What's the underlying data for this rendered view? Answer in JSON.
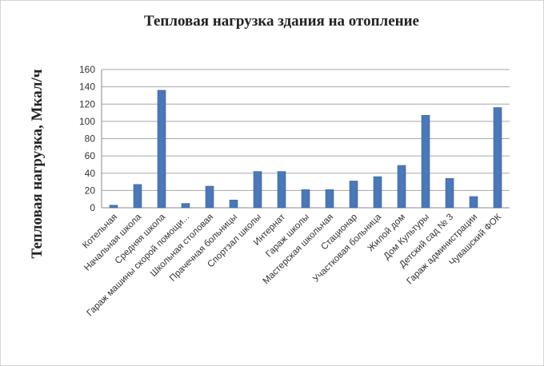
{
  "chart_data": {
    "type": "bar",
    "title": "Тепловая нагрузка здания на отопление",
    "ylabel": "Тепловая нагрузка, Мкал/ч",
    "xlabel": "",
    "ylim": [
      0,
      160
    ],
    "yticks": [
      0,
      20,
      40,
      60,
      80,
      100,
      120,
      140,
      160
    ],
    "grid": true,
    "legend": "none",
    "bar_color": "#4a78b8",
    "categories": [
      "Котельная",
      "Начальная школа",
      "Средняя школа",
      "Гараж машины скорой помощи...",
      "Школьная столовая",
      "Прачечная больницы",
      "Спортзал школы",
      "Интернат",
      "Гараж школы",
      "Мастерская школьная",
      "Стационар",
      "Участковая больница",
      "Жилой дом",
      "Дом Культуры",
      "Детский сад № 3",
      "Гараж администрации",
      "Чувашский ФОК"
    ],
    "values": [
      3,
      27,
      136,
      5,
      25,
      9,
      42,
      42,
      21,
      21,
      31,
      36,
      49,
      107,
      34,
      13,
      116
    ]
  }
}
